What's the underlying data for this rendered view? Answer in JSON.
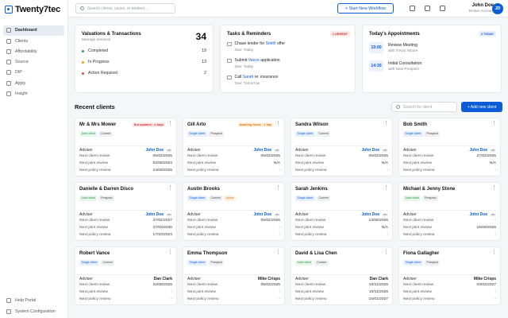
{
  "app": {
    "logo": "Twenty7tec"
  },
  "sidebar": {
    "items": [
      {
        "label": "Dashboard",
        "active": true
      },
      {
        "label": "Clients"
      },
      {
        "label": "Affordability"
      },
      {
        "label": "Source"
      },
      {
        "label": "DIP"
      },
      {
        "label": "Apply"
      },
      {
        "label": "Insight"
      }
    ],
    "bottom": [
      {
        "label": "Help Portal"
      },
      {
        "label": "System Configuration"
      }
    ]
  },
  "topbar": {
    "search_placeholder": "Search clients, cases, or lenders...",
    "workflow_label": "+ Start New Workflow",
    "user_name": "John Doe",
    "user_role": "Broker Account",
    "avatar_initials": "JD"
  },
  "valuations": {
    "title": "Valuations & Transactions",
    "subtitle": "Manage services",
    "total": "34",
    "rows": [
      {
        "label": "Completed",
        "count": "19",
        "color": "#22a845"
      },
      {
        "label": "In Progress",
        "count": "13",
        "color": "#f59e0b"
      },
      {
        "label": "Action Required",
        "count": "2",
        "color": "#ef4444"
      }
    ]
  },
  "tasks": {
    "title": "Tasks & Reminders",
    "badge": "1 URGENT",
    "items": [
      {
        "pre": "Chase lender for ",
        "hl": "Smith",
        "post": " offer",
        "due": "Due: Today"
      },
      {
        "pre": "Submit ",
        "hl": "Vance",
        "post": " application",
        "due": "Due: Today"
      },
      {
        "pre": "Call ",
        "hl": "Sarah",
        "post": " re: insurance",
        "due": "Due: Tomorrow"
      }
    ]
  },
  "appointments": {
    "title": "Today's Appointments",
    "badge": "2 TODAY",
    "items": [
      {
        "time": "10:00",
        "name": "Review Meeting",
        "with": "with Trevor Moore"
      },
      {
        "time": "14:30",
        "name": "Initial Consultation",
        "with": "with New Prospect"
      }
    ]
  },
  "recent": {
    "title": "Recent clients",
    "search_placeholder": "Search for client",
    "add_label": "+ Add new client",
    "adviser_label": "Adviser",
    "clients": [
      {
        "name": "Mr & Mrs Mower",
        "flag": "Not updated · 2 days",
        "flag_type": "red",
        "chips": [
          {
            "t": "Joint client",
            "k": "joint"
          },
          {
            "t": "Current",
            "k": "plain"
          }
        ],
        "adviser": "John Doe",
        "initials": "me",
        "reviews": [
          {
            "l": "Next client review",
            "v": "05/02/2026"
          },
          {
            "l": "Next joint review",
            "v": "02/08/2024"
          },
          {
            "l": "Next policy review",
            "v": "24/09/2025"
          }
        ]
      },
      {
        "name": "Gill Arto",
        "flag": "Awaiting forms · 1 day",
        "flag_type": "org",
        "chips": [
          {
            "t": "Single client",
            "k": "single"
          },
          {
            "t": "Prospect",
            "k": "plain"
          }
        ],
        "adviser": "John Doe",
        "initials": "me",
        "reviews": [
          {
            "l": "Next client review",
            "v": "05/02/2026"
          },
          {
            "l": "Next joint review",
            "v": "N/A"
          },
          {
            "l": "Next policy review",
            "v": "-"
          }
        ]
      },
      {
        "name": "Sandra Wilson",
        "chips": [
          {
            "t": "Single client",
            "k": "single"
          },
          {
            "t": "Current",
            "k": "plain"
          }
        ],
        "adviser": "John Doe",
        "initials": "me",
        "reviews": [
          {
            "l": "Next client review",
            "v": "05/02/2026"
          },
          {
            "l": "Next joint review",
            "v": "N/A"
          },
          {
            "l": "Next policy review",
            "v": "-"
          }
        ]
      },
      {
        "name": "Bob Smith",
        "chips": [
          {
            "t": "Single client",
            "k": "single"
          },
          {
            "t": "Prospect",
            "k": "plain"
          }
        ],
        "adviser": "John Doe",
        "initials": "me",
        "reviews": [
          {
            "l": "Next client review",
            "v": "27/02/2026"
          },
          {
            "l": "Next joint review",
            "v": "N/A"
          },
          {
            "l": "Next policy review",
            "v": "-"
          }
        ]
      },
      {
        "name": "Danielle & Darren Disco",
        "chips": [
          {
            "t": "Joint client",
            "k": "joint"
          },
          {
            "t": "Prospect",
            "k": "plain"
          }
        ],
        "adviser": "John Doe",
        "initials": "me",
        "reviews": [
          {
            "l": "Next client review",
            "v": "27/02/2027"
          },
          {
            "l": "Next joint review",
            "v": "27/03/2030"
          },
          {
            "l": "Next policy review",
            "v": "17/10/2024"
          }
        ]
      },
      {
        "name": "Austin Brooks",
        "chips": [
          {
            "t": "Single client",
            "k": "single"
          },
          {
            "t": "Current",
            "k": "plain"
          },
          {
            "t": "Active",
            "k": "active"
          }
        ],
        "adviser": "John Doe",
        "initials": "me",
        "reviews": [
          {
            "l": "Next client review",
            "v": "05/02/2026"
          },
          {
            "l": "Next joint review",
            "v": "-"
          },
          {
            "l": "Next policy review",
            "v": "-"
          }
        ]
      },
      {
        "name": "Sarah Jenkins",
        "chips": [
          {
            "t": "Single client",
            "k": "single"
          },
          {
            "t": "Current",
            "k": "plain"
          }
        ],
        "adviser": "John Doe",
        "initials": "me",
        "reviews": [
          {
            "l": "Next client review",
            "v": "13/06/2026"
          },
          {
            "l": "Next joint review",
            "v": "N/A"
          },
          {
            "l": "Next policy review",
            "v": "-"
          }
        ]
      },
      {
        "name": "Michael & Jenny Stone",
        "chips": [
          {
            "t": "Joint client",
            "k": "joint"
          },
          {
            "t": "Prospect",
            "k": "plain"
          }
        ],
        "adviser": "John Doe",
        "initials": "me",
        "reviews": [
          {
            "l": "Next client review",
            "v": "-"
          },
          {
            "l": "Next joint review",
            "v": "15/09/2026"
          },
          {
            "l": "Next policy review",
            "v": "-"
          }
        ]
      },
      {
        "name": "Robert Vance",
        "chips": [
          {
            "t": "Single client",
            "k": "single"
          },
          {
            "t": "Current",
            "k": "plain"
          }
        ],
        "adviser": "Dan Clark",
        "reviews": [
          {
            "l": "Next client review",
            "v": "22/08/2026"
          },
          {
            "l": "Next joint review",
            "v": "-"
          },
          {
            "l": "Next policy review",
            "v": "-"
          }
        ]
      },
      {
        "name": "Emma Thompson",
        "chips": [
          {
            "t": "Single client",
            "k": "single"
          },
          {
            "t": "Prospect",
            "k": "plain"
          }
        ],
        "adviser": "Mike Crisps",
        "reviews": [
          {
            "l": "Next client review",
            "v": "05/02/2026"
          },
          {
            "l": "Next joint review",
            "v": "-"
          },
          {
            "l": "Next policy review",
            "v": "-"
          }
        ]
      },
      {
        "name": "David & Lisa Chen",
        "chips": [
          {
            "t": "Joint client",
            "k": "joint"
          },
          {
            "t": "Current",
            "k": "plain"
          }
        ],
        "adviser": "Dan Clark",
        "reviews": [
          {
            "l": "Next client review",
            "v": "10/11/2026"
          },
          {
            "l": "Next joint review",
            "v": "10/11/2026"
          },
          {
            "l": "Next policy review",
            "v": "15/01/2027"
          }
        ]
      },
      {
        "name": "Fiona Gallagher",
        "chips": [
          {
            "t": "Single client",
            "k": "single"
          },
          {
            "t": "Prospect",
            "k": "plain"
          }
        ],
        "adviser": "Mike Crisps",
        "reviews": [
          {
            "l": "Next client review",
            "v": "03/02/2027"
          },
          {
            "l": "Next joint review",
            "v": "-"
          },
          {
            "l": "Next policy review",
            "v": "-"
          }
        ]
      }
    ]
  }
}
